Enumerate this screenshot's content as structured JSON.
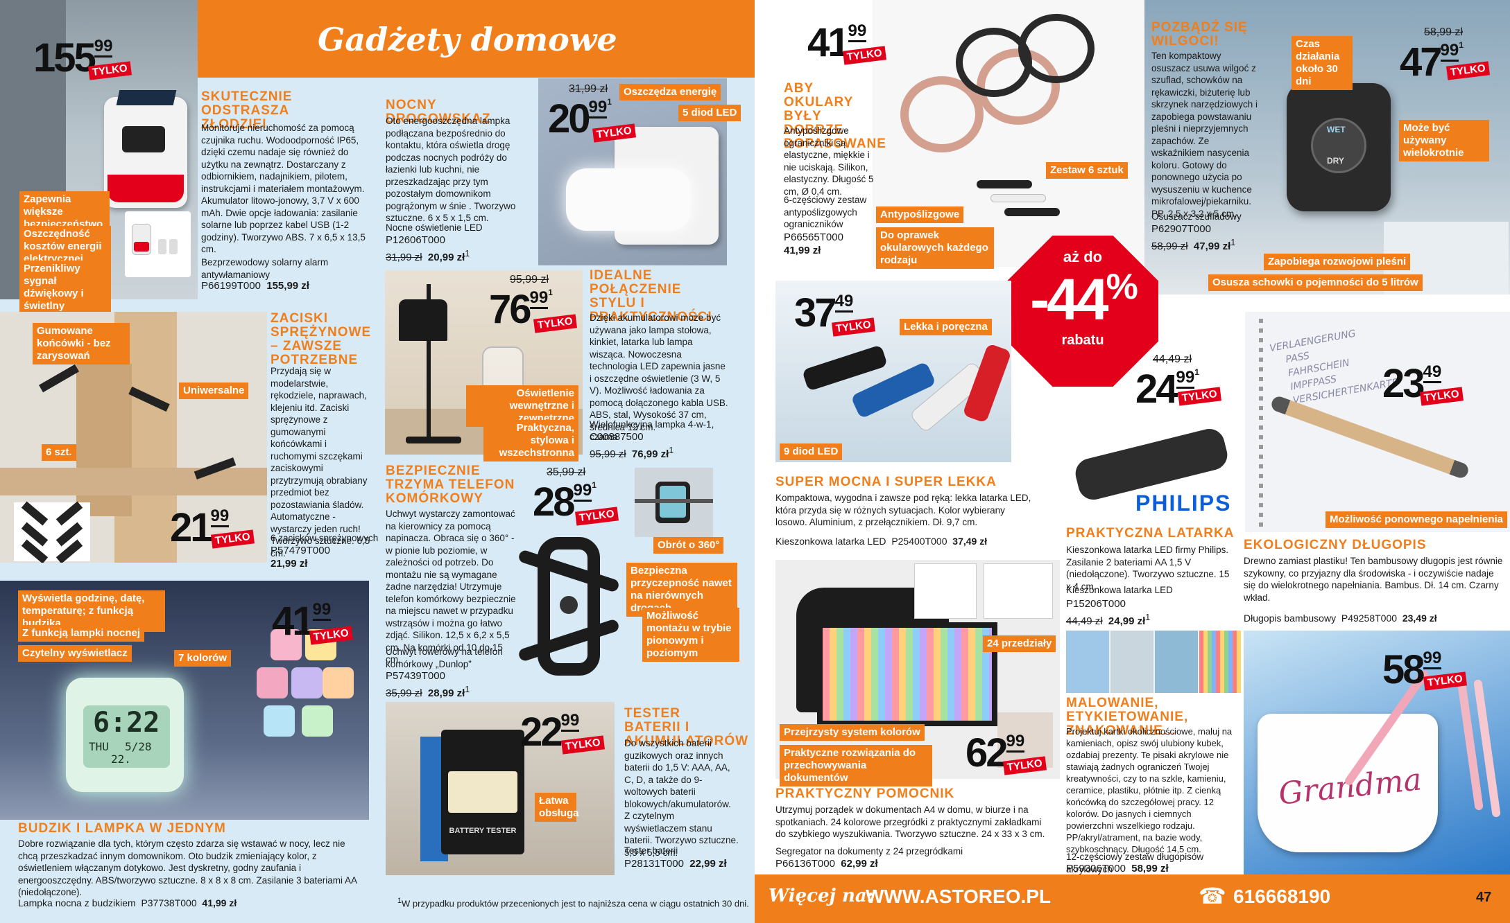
{
  "page": {
    "title": "Gadżety domowe",
    "page_number": "47",
    "footnote": "W przypadku produktów przecenionych jest to najniższa cena w ciągu ostatnich 30 dni.",
    "footnote_mark": "1"
  },
  "footer": {
    "more_label": "Więcej na:",
    "website": "WWW.ASTOREO.PL",
    "phone": "616668190",
    "phone_icon": "phone-icon"
  },
  "colors": {
    "accent": "#f07e1b",
    "price_badge": "#e3001b",
    "background": "#d7eaf5"
  },
  "only_label": "TYLKO",
  "promo": {
    "prefix": "aż do",
    "value": "-44",
    "percent": "%",
    "suffix": "rabatu"
  },
  "products": {
    "alarm": {
      "price_int": "155",
      "price_dec": "99",
      "heading": "SKUTECZNIE ODSTRASZA ZŁODZIEI",
      "desc": "Monitoruje nieruchomość za pomocą czujnika ruchu. Wodoodporność IP65, dzięki czemu nadaje się również do użytku na zewnątrz. Dostarczany z odbiornikiem, nadajnikiem, pilotem, instrukcjami i materiałem montażowym. Akumulator litowo-jonowy, 3,7 V x 600 mAh. Dwie opcje ładowania: zasilanie solarne lub poprzez kabel USB (1-2 godziny). Tworzywo ABS. 7 x 6,5 x 13,5 cm.",
      "name": "Bezprzewodowy solarny alarm antywłamaniowy",
      "code": "P66199T000",
      "final": "155,99 zł",
      "labels": [
        "Zapewnia większe bezpieczeństwo",
        "Oszczędność kosztów energii elektrycznej",
        "Przenikliwy sygnał dźwiękowy i świetlny"
      ]
    },
    "nightlight": {
      "price_int": "20",
      "price_dec": "99",
      "sup": "1",
      "was": "31,99 zł",
      "heading": "NOCNY DROGOWSKAZ",
      "desc": "Oto energooszczędna lampka podłączana bezpośrednio do kontaktu, która oświetla drogę podczas nocnych podróży do łazienki lub kuchni, nie przeszkadzając przy tym pozostałym domownikom pogrążonym w śnie . Tworzywo sztuczne. 6 x 5 x 1,5 cm.",
      "name": "Nocne oświetlenie LED",
      "code": "P12606T000",
      "old": "31,99 zł",
      "final": "20,99 zł",
      "final_sup": "1",
      "labels": [
        "Oszczędza energię",
        "5 diod LED"
      ]
    },
    "glasses": {
      "price_int": "41",
      "price_dec": "99",
      "heading": "ABY OKULARY BYŁY DOBRZE DOPASOWANE",
      "desc": "Antypoślizgowe ograniczniki są elastyczne, miękkie i nie uciskają. Silikon, elastyczny. Długość 5 cm, Ø 0,4 cm.",
      "name": "6-częściowy zestaw antypoślizgowych ograniczników",
      "code": "P66565T000",
      "final": "41,99 zł",
      "labels": [
        "Zestaw 6 sztuk",
        "Antypoślizgowe",
        "Do oprawek okularowych każdego rodzaju"
      ]
    },
    "dehumidifier": {
      "price_int": "47",
      "price_dec": "99",
      "sup": "1",
      "was": "58,99 zł",
      "heading": "POZBĄDŹ SIĘ WILGOCI!",
      "desc": "Ten kompaktowy osuszacz usuwa wilgoć z szuflad, schowków na rękawiczki, biżuterię lub skrzynek narzędziowych i zapobiega powstawaniu pleśni i nieprzyjemnych zapachów. Ze wskaźnikiem nasycenia koloru. Gotowy do ponownego użycia po wysuszeniu w kuchence mikrofalowej/piekarniku. PP. 2,5 x 3,2 x 5 cm.",
      "name": "Osuszacz szufladowy",
      "code": "P62907T000",
      "old": "58,99 zł",
      "final": "47,99 zł",
      "final_sup": "1",
      "labels": [
        "Czas działania około 30 dni",
        "Może być używany wielokrotnie",
        "Zapobiega rozwojowi pleśni",
        "Osusza schowki o pojemności do 5 litrów"
      ],
      "device_text": [
        "WET",
        "DRY"
      ]
    },
    "clamps": {
      "price_int": "21",
      "price_dec": "99",
      "heading": "ZACISKI SPRĘŻYNOWE – ZAWSZE POTRZEBNE",
      "desc": "Przydają się w modelarstwie, rękodziele, naprawach, klejeniu itd. Zaciski sprężynowe z gumowanymi końcówkami i ruchomymi szczękami zaciskowymi przytrzymują obrabiany przedmiot bez pozostawiania śladów. Automatyczne - wystarczy jeden ruch! Tworzywo sztuczne. 6,5 cm.",
      "name": "6 zacisków sprężynowych",
      "code": "P57479T000",
      "final": "21,99 zł",
      "labels": [
        "Gumowane końcówki - bez zarysowań",
        "Uniwersalne",
        "6 szt."
      ]
    },
    "lamp": {
      "price_int": "76",
      "price_dec": "99",
      "sup": "1",
      "was": "95,99 zł",
      "heading": "IDEALNE POŁĄCZENIE STYLU I PRAKTYCZNOŚCI",
      "desc": "Dzięki akumulatorowi może być używana jako lampa stołowa, kinkiet, latarka lub lampa wisząca. Nowoczesna technologia LED zapewnia jasne i oszczędne oświetlenie (3 W, 5 V). Możliwość ładowania za pomocą dołączonego kabla USB. ABS, stal, Wysokość 37 cm, średnica 12 cm.",
      "name": "Wielofunkcyjna lampka 4-w-1, czarna",
      "code": "C00887500",
      "old": "95,99 zł",
      "final": "76,99 zł",
      "final_sup": "1",
      "labels": [
        "Oświetlenie wewnętrzne i zewnętrzne",
        "Praktyczna, stylowa i wszechstronna"
      ]
    },
    "flashlights": {
      "price_int": "37",
      "price_dec": "49",
      "heading": "SUPER MOCNA I SUPER LEKKA",
      "desc": "Kompaktowa, wygodna i zawsze pod ręką: lekka latarka LED, która przyda się w różnych sytuacjach. Kolor wybierany losowo. Aluminium, z przełącznikiem. Dł. 9,7 cm.",
      "name": "Kieszonkowa latarka LED",
      "code": "P25400T000",
      "final": "37,49 zł",
      "labels": [
        "Lekka i poręczna",
        "9 diod LED"
      ]
    },
    "philips": {
      "price_int": "24",
      "price_dec": "99",
      "sup": "1",
      "was": "44,49 zł",
      "brand": "PHILIPS",
      "heading": "PRAKTYCZNA LATARKA",
      "desc": "Kieszonkowa latarka LED firmy Philips. Zasilanie 2 bateriami AA 1,5 V (niedołączone). Tworzywo sztuczne. 15 x 4 cm.",
      "name": "Kieszonkowa latarka LED",
      "code": "P15206T000",
      "old": "44,49 zł",
      "final": "24,99 zł",
      "final_sup": "1"
    },
    "pen": {
      "price_int": "23",
      "price_dec": "49",
      "heading": "EKOLOGICZNY DŁUGOPIS",
      "desc": "Drewno zamiast plastiku! Ten bambusowy długopis jest równie szykowny, co przyjazny dla środowiska - i oczywiście nadaje się do wielokrotnego napełniania. Bambus. Dł. 14 cm. Czarny wkład.",
      "name": "Długopis bambusowy",
      "code": "P49258T000",
      "final": "23,49 zł",
      "labels": [
        "Możliwość ponownego napełnienia"
      ],
      "notebook_text": [
        "VERLAENGERUNG",
        "PASS",
        "FAHRSCHEIN",
        "IMPFPASS",
        "VERSICHERTENKARTE"
      ]
    },
    "clock": {
      "price_int": "41",
      "price_dec": "99",
      "heading": "BUDZIK I LAMPKA W JEDNYM",
      "desc": "Dobre rozwiązanie dla tych, którym często zdarza się wstawać w nocy, lecz nie chcą przeszkadzać innym domownikom. Oto budzik zmieniający kolor, z oświetleniem włączanym dotykowo. Jest dyskretny, godny zaufania i energooszczędny. ABS/tworzywo sztuczne. 8 x 8 x 8 cm. Zasilanie 3 bateriami AA (niedołączone).",
      "name": "Lampka nocna z budzikiem",
      "code": "P37738T000",
      "final": "41,99 zł",
      "labels": [
        "Wyświetla godzinę, datę, temperaturę; z funkcją budzika",
        "Z funkcją lampki nocnej",
        "Czytelny wyświetlacz",
        "7 kolorów"
      ],
      "display": {
        "time": "6:22",
        "day": "THU",
        "date": "5/28",
        "temp": "22."
      }
    },
    "phoneholder": {
      "price_int": "28",
      "price_dec": "99",
      "sup": "1",
      "was": "35,99 zł",
      "heading": "BEZPIECZNIE TRZYMA TELEFON KOMÓRKOWY",
      "desc": "Uchwyt wystarczy zamontować na kierownicy za pomocą napinacza. Obraca się o 360° - w pionie lub poziomie, w zależności od potrzeb. Do montażu nie są wymagane żadne narzędzia! Utrzymuje telefon komórkowy bezpiecznie na miejscu nawet w przypadku wstrząsów i można go łatwo zdjąć. Silikon. 12,5 x 6,2 x 5,5 cm. Na komórki od 10 do 15 cm.",
      "name": "Uchwyt rowerowy na telefon komórkowy „Dunlop”",
      "code": "P57439T000",
      "old": "35,99 zł",
      "final": "28,99 zł",
      "final_sup": "1",
      "labels": [
        "Obrót o 360°",
        "Bezpieczna przyczepność nawet na nierównych drogach",
        "Możliwość montażu w trybie pionowym i poziomym"
      ]
    },
    "tester": {
      "price_int": "22",
      "price_dec": "99",
      "heading": "TESTER BATERII I AKUMULATORÓW",
      "desc": "Do wszystkich baterii guzikowych oraz innych baterii do 1,5 V: AAA, AA, C, D, a także do 9-woltowych baterii blokowych/akumulatorów. Z czytelnym wyświetlaczem stanu baterii. Tworzywo sztuczne. 5,5 x 5,5 cm.",
      "name": "Tester baterii",
      "code": "P28131T000",
      "final": "22,99 zł",
      "labels": [
        "Łatwa obsługa"
      ],
      "device_text": "BATTERY TESTER"
    },
    "organizer": {
      "price_int": "62",
      "price_dec": "99",
      "heading": "PRAKTYCZNY POMOCNIK",
      "desc": "Utrzymuj porządek w dokumentach A4 w domu, w biurze i na spotkaniach. 24 kolorowe przegródki z praktycznymi zakładkami do szybkiego wyszukiwania. Tworzywo sztuczne. 24 x 33 x 3 cm.",
      "name": "Segregator na dokumenty z 24 przegródkami",
      "code": "P66136T000",
      "final": "62,99 zł",
      "labels": [
        "24 przedziały",
        "Przejrzysty system kolorów",
        "Praktyczne rozwiązania do przechowywania dokumentów"
      ]
    },
    "markers": {
      "price_int": "58",
      "price_dec": "99",
      "heading": "MALOWANIE, ETYKIETOWANIE, ZNAKOWANIE...",
      "desc": "Projektuj kartki okolicznościowe, maluj na kamieniach, opisz swój ulubiony kubek, ozdabiaj prezenty. Te pisaki akrylowe nie stawiają żadnych ograniczeń Twojej kreatywności, czy to na szkle, kamieniu, ceramice, plastiku, płótnie itp. Z cienką końcówką do szczegółowej pracy. 12 kolorów. Do jasnych i ciemnych powierzchni wszelkiego rodzaju. PP/akryl/atrament, na bazie wody, szybkoschnący. Długość 14,5 cm.",
      "name": "12-częściowy zestaw długopisów akrylowych",
      "code": "P59306T000",
      "final": "58,99 zł",
      "mug_text": "Grandma"
    }
  }
}
